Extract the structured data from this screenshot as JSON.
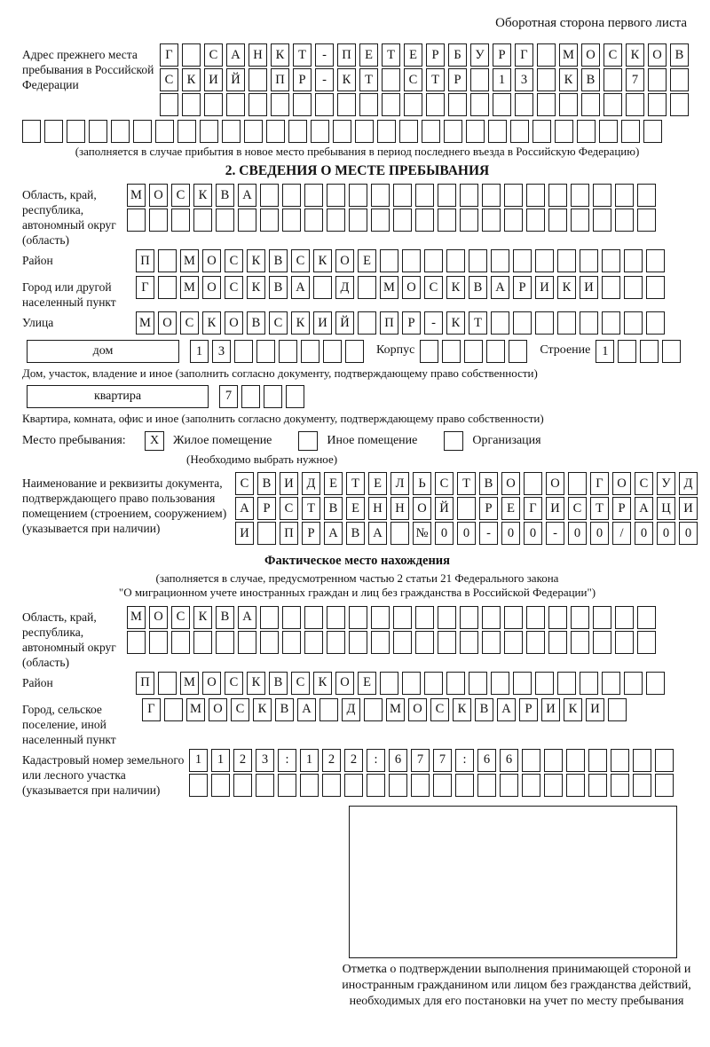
{
  "page": {
    "header_note": "Оборотная сторона первого листа"
  },
  "prev_address": {
    "label": "Адрес прежнего места пребывания в Российской Федерации",
    "rows": [
      {
        "chars": "Г САНКТ-ПЕТЕРБУРГ МОСКОВ",
        "len": 24
      },
      {
        "chars": "СКИЙ ПР-КТ СТР 13 КВ 7",
        "len": 24
      },
      {
        "chars": "",
        "len": 24
      },
      {
        "chars": "",
        "len": 29
      }
    ],
    "caption": "(заполняется в случае прибытия в новое место пребывания в период последнего въезда в Российскую Федерацию)"
  },
  "section2": {
    "title": "2. СВЕДЕНИЯ О МЕСТЕ ПРЕБЫВАНИЯ",
    "region": {
      "label": "Область, край, республика, автономный округ (область)",
      "rows": [
        {
          "chars": "МОСКВА",
          "len": 24
        },
        {
          "chars": "",
          "len": 24
        }
      ]
    },
    "district": {
      "label": "Район",
      "row": {
        "chars": "П МОСКВСКОЕ",
        "len": 24
      }
    },
    "city": {
      "label": "Город или другой населенный пункт",
      "row": {
        "chars": "Г МОСКВА Д МОСКВАРИКИ",
        "len": 24
      }
    },
    "street": {
      "label": "Улица",
      "row": {
        "chars": "МОСКОВСКИЙ ПР-КТ",
        "len": 24
      }
    },
    "house": {
      "box_label": "дом",
      "cells": {
        "chars": "13",
        "len": 8
      },
      "korpus_label": "Корпус",
      "korpus_cells": {
        "chars": "",
        "len": 5
      },
      "stroenie_label": "Строение",
      "stroenie_cells": {
        "chars": "1",
        "len": 4
      },
      "caption": "Дом, участок, владение и иное (заполнить согласно документу, подтверждающему право собственности)"
    },
    "apartment": {
      "box_label": "квартира",
      "cells": {
        "chars": "7",
        "len": 4
      },
      "caption": "Квартира, комната, офис и иное (заполнить согласно документу, подтверждающему право собственности)"
    },
    "stay_type": {
      "label": "Место пребывания:",
      "options": [
        {
          "label": "Жилое помещение",
          "mark": "X"
        },
        {
          "label": "Иное помещение",
          "mark": ""
        },
        {
          "label": "Организация",
          "mark": ""
        }
      ],
      "caption": "(Необходимо выбрать нужное)"
    },
    "document": {
      "label": "Наименование и реквизиты документа, подтверждающего право пользования помещением (строением, сооружением) (указывается при наличии)",
      "rows": [
        {
          "chars": "СВИДЕТЕЛЬСТВО О ГОСУД",
          "len": 21
        },
        {
          "chars": "АРСТВЕННОЙ РЕГИСТРАЦИ",
          "len": 21
        },
        {
          "chars": "И ПРАВА №00-00-00/000",
          "len": 21
        }
      ]
    }
  },
  "actual_location": {
    "title": "Фактическое место нахождения",
    "caption_line1": "(заполняется в случае, предусмотренном частью 2 статьи 21 Федерального закона",
    "caption_line2": "\"О миграционном учете иностранных граждан и лиц без гражданства в Российской Федерации\")",
    "region": {
      "label": "Область, край, республика, автономный округ (область)",
      "rows": [
        {
          "chars": "МОСКВА",
          "len": 24
        },
        {
          "chars": "",
          "len": 24
        }
      ]
    },
    "district": {
      "label": "Район",
      "row": {
        "chars": "П МОСКВСКОЕ",
        "len": 24
      }
    },
    "city": {
      "label": "Город, сельское поселение, иной населенный пункт",
      "row": {
        "chars": "Г МОСКВА Д МОСКВАРИКИ",
        "len": 22
      }
    },
    "cadastral": {
      "label": "Кадастровый номер земельного или лесного участка (указывается при наличии)",
      "rows": [
        {
          "chars": "1123:122:677:66",
          "len": 22
        },
        {
          "chars": "",
          "len": 22
        }
      ]
    },
    "stamp_caption": "Отметка о подтверждении выполнения принимающей стороной и иностранным гражданином или лицом без гражданства действий, необходимых для его постановки на учет по месту пребывания"
  }
}
